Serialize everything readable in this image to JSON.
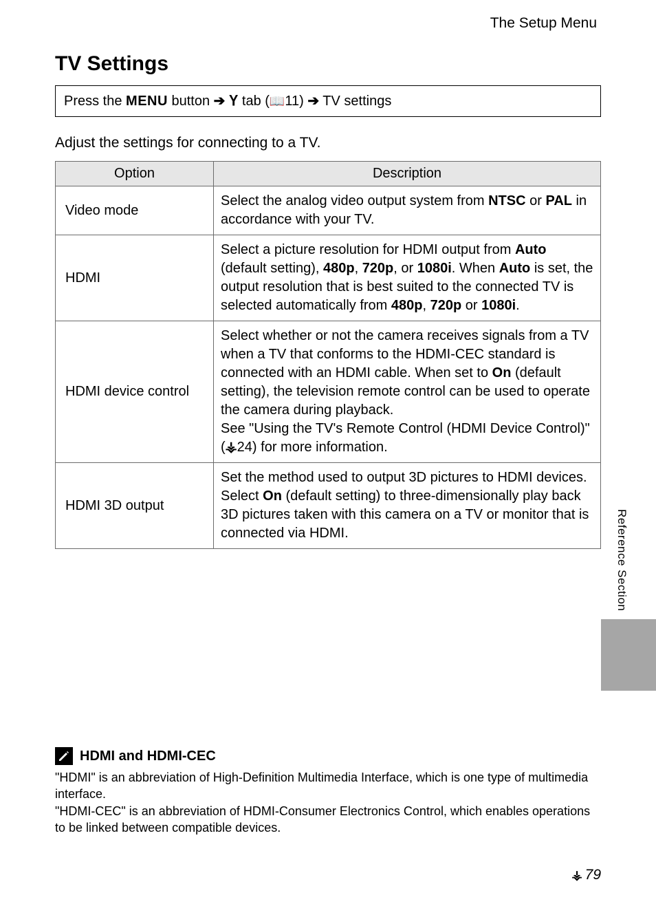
{
  "header": {
    "section": "The Setup Menu"
  },
  "title": "TV Settings",
  "nav": {
    "prefix": "Press the ",
    "menu_button": "MENU",
    "after_menu": " button ",
    "arrow": "➔",
    "tab_word": " tab (",
    "page_ref": "11",
    "after_ref": ") ",
    "dest": " TV settings"
  },
  "intro": "Adjust the settings for connecting to a TV.",
  "table": {
    "headers": {
      "option": "Option",
      "description": "Description"
    },
    "rows": [
      {
        "option": "Video mode",
        "desc_html": "Select the analog video output system from <b>NTSC</b> or <b>PAL</b> in accordance with your TV."
      },
      {
        "option": "HDMI",
        "desc_html": "Select a picture resolution for HDMI output from <b>Auto</b> (default setting), <b>480p</b>, <b>720p</b>, or <b>1080i</b>. When <b>Auto</b> is set, the output resolution that is best suited to the connected TV is selected automatically from <b>480p</b>, <b>720p</b> or <b>1080i</b>."
      },
      {
        "option": "HDMI device control",
        "desc_html": "Select whether or not the camera receives signals from a TV when a TV that conforms to the HDMI-CEC standard is connected with an HDMI cable. When set to <b>On</b> (default setting), the television remote control can be used to operate the camera during playback.<br>See \"Using the TV's Remote Control (HDMI Device Control)\" (<span class='ref-icon'>&#x26B6;</span>24) for more information."
      },
      {
        "option": "HDMI 3D output",
        "desc_html": "Set the method used to output 3D pictures to HDMI devices. Select <b>On</b> (default setting) to three-dimensionally play back 3D pictures taken with this camera on a TV or monitor that is connected via HDMI."
      }
    ]
  },
  "side_label": "Reference Section",
  "note": {
    "title": "HDMI and HDMI-CEC",
    "body1": "\"HDMI\" is an abbreviation of High-Definition Multimedia Interface, which is one type of multimedia interface.",
    "body2": "\"HDMI-CEC\" is an abbreviation of HDMI-Consumer Electronics Control, which enables operations to be linked between compatible devices."
  },
  "page_number": "79"
}
